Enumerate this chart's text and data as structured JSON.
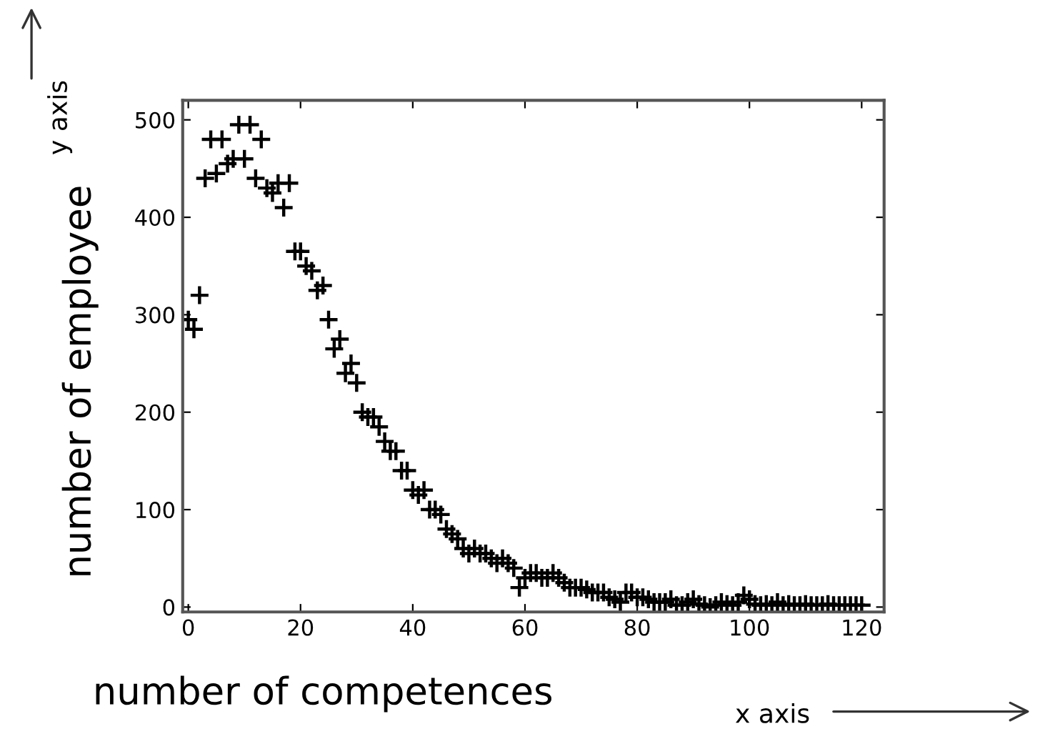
{
  "chart_data": {
    "type": "scatter",
    "xlabel": "number of competences",
    "ylabel": "number of employee",
    "annotations": [
      "x axis",
      "y axis"
    ],
    "x": [
      0,
      1,
      2,
      3,
      4,
      5,
      6,
      7,
      8,
      9,
      10,
      11,
      12,
      13,
      14,
      15,
      16,
      17,
      18,
      19,
      20,
      21,
      22,
      23,
      24,
      25,
      26,
      27,
      28,
      29,
      30,
      31,
      32,
      33,
      34,
      35,
      36,
      37,
      38,
      39,
      40,
      41,
      42,
      43,
      44,
      45,
      46,
      47,
      48,
      49,
      50,
      51,
      52,
      53,
      54,
      55,
      56,
      57,
      58,
      59,
      60,
      61,
      62,
      63,
      64,
      65,
      66,
      67,
      68,
      69,
      70,
      71,
      72,
      73,
      74,
      75,
      76,
      77,
      78,
      79,
      80,
      81,
      82,
      83,
      84,
      85,
      86,
      87,
      88,
      89,
      90,
      91,
      92,
      93,
      94,
      95,
      96,
      97,
      98,
      99,
      100,
      101,
      102,
      103,
      104,
      105,
      106,
      107,
      108,
      109,
      110,
      111,
      112,
      113,
      114,
      115,
      116,
      117,
      118,
      119,
      120
    ],
    "values": [
      295,
      285,
      320,
      440,
      480,
      445,
      480,
      455,
      460,
      495,
      460,
      495,
      440,
      480,
      430,
      425,
      435,
      410,
      435,
      365,
      365,
      350,
      345,
      325,
      330,
      295,
      265,
      275,
      240,
      250,
      230,
      200,
      195,
      195,
      185,
      170,
      160,
      160,
      140,
      140,
      120,
      115,
      120,
      100,
      100,
      95,
      80,
      75,
      70,
      60,
      55,
      60,
      55,
      55,
      50,
      45,
      50,
      45,
      40,
      20,
      30,
      35,
      35,
      30,
      30,
      35,
      30,
      25,
      20,
      20,
      20,
      18,
      15,
      15,
      15,
      10,
      8,
      5,
      15,
      15,
      10,
      10,
      8,
      5,
      5,
      5,
      8,
      2,
      2,
      5,
      8,
      3,
      2,
      0,
      2,
      5,
      3,
      2,
      5,
      12,
      8,
      3,
      2,
      3,
      2,
      5,
      2,
      3,
      2,
      2,
      3,
      2,
      2,
      2,
      3,
      2,
      2,
      2,
      2,
      2,
      2
    ],
    "color": "#000000",
    "marker": "cross",
    "xlim": [
      -1,
      124
    ],
    "ylim": [
      -5,
      520
    ],
    "xticks": [
      0,
      20,
      40,
      60,
      80,
      100,
      120
    ],
    "yticks": [
      0,
      100,
      200,
      300,
      400,
      500
    ],
    "grid": false
  }
}
